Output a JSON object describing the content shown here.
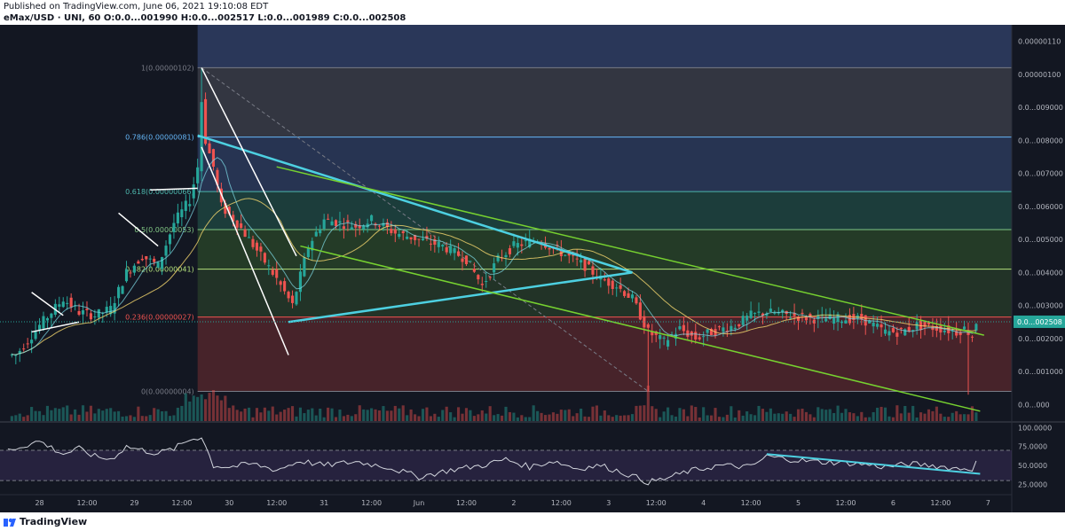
{
  "header": {
    "published": "Published on TradingView.com, June 06, 2021 19:10:08 EDT",
    "symbol_line": "eMax/USD · UNI, 60  O:0.0...001990  H:0.0...002517  L:0.0...001989  C:0.0...002508"
  },
  "footer": {
    "brand": "TradingView"
  },
  "colors": {
    "background": "#131722",
    "up": "#26a69a",
    "down": "#ef5350",
    "trend_cyan": "#4dd0e1",
    "channel_green": "#76d130",
    "rsi": "#d1d4dc"
  },
  "chart_data": [
    {
      "type": "candlestick",
      "price_axis_labels": [
        "0.00000110",
        "0.00000100",
        "0.0...009000",
        "0.0...008000",
        "0.0...007000",
        "0.0...006000",
        "0.0...005000",
        "0.0...004000",
        "0.0...003000",
        "0.0...002000",
        "0.0...001000",
        "0.0...000"
      ],
      "price_axis_values": [
        1.1,
        1.0,
        0.9,
        0.8,
        0.7,
        0.6,
        0.5,
        0.4,
        0.3,
        0.2,
        0.1,
        0.0
      ],
      "ylim": [
        -0.05,
        1.15
      ],
      "current_price_label": "0.0...002508",
      "current_price": 0.2508,
      "x_tick_labels": [
        "28",
        "12:00",
        "29",
        "12:00",
        "30",
        "12:00",
        "31",
        "12:00",
        "Jun",
        "12:00",
        "2",
        "12:00",
        "3",
        "12:00",
        "4",
        "12:00",
        "5",
        "12:00",
        "6",
        "12:00",
        "7"
      ],
      "x_tick_hours": [
        0,
        12,
        24,
        36,
        48,
        60,
        72,
        84,
        96,
        108,
        120,
        132,
        144,
        156,
        168,
        180,
        192,
        204,
        216,
        228,
        240
      ],
      "fib_levels": [
        {
          "label": "1(0.00000102)",
          "level": 1.02,
          "color": "#787b86"
        },
        {
          "label": "0.786(0.00000081)",
          "level": 0.81,
          "color": "#64b5f6"
        },
        {
          "label": "0.618(0.00000066)",
          "level": 0.645,
          "color": "#4db6ac"
        },
        {
          "label": "0.5(0.00000053)",
          "level": 0.53,
          "color": "#81c784"
        },
        {
          "label": "0.382(0.00000041)",
          "level": 0.41,
          "color": "#b2e07a"
        },
        {
          "label": "0.236(0.00000027)",
          "level": 0.265,
          "color": "#ef5350"
        },
        {
          "label": "0(0.00000004)",
          "level": 0.04,
          "color": "#787b86"
        }
      ],
      "fib_zone_top": 1.15,
      "fib_start_hour": 40,
      "price_path": [
        [
          -6,
          0.15
        ],
        [
          0,
          0.24
        ],
        [
          6,
          0.32
        ],
        [
          10,
          0.28
        ],
        [
          14,
          0.27
        ],
        [
          18,
          0.29
        ],
        [
          22,
          0.4
        ],
        [
          26,
          0.45
        ],
        [
          30,
          0.42
        ],
        [
          34,
          0.55
        ],
        [
          38,
          0.62
        ],
        [
          40,
          0.72
        ],
        [
          41,
          0.92
        ],
        [
          42,
          0.8
        ],
        [
          44,
          0.72
        ],
        [
          46,
          0.6
        ],
        [
          50,
          0.55
        ],
        [
          56,
          0.45
        ],
        [
          60,
          0.38
        ],
        [
          64,
          0.3
        ],
        [
          68,
          0.48
        ],
        [
          72,
          0.56
        ],
        [
          80,
          0.54
        ],
        [
          84,
          0.56
        ],
        [
          90,
          0.52
        ],
        [
          96,
          0.5
        ],
        [
          102,
          0.48
        ],
        [
          108,
          0.44
        ],
        [
          112,
          0.36
        ],
        [
          116,
          0.44
        ],
        [
          120,
          0.48
        ],
        [
          126,
          0.5
        ],
        [
          132,
          0.46
        ],
        [
          138,
          0.42
        ],
        [
          142,
          0.38
        ],
        [
          146,
          0.36
        ],
        [
          150,
          0.32
        ],
        [
          154,
          0.22
        ],
        [
          158,
          0.19
        ],
        [
          162,
          0.23
        ],
        [
          166,
          0.2
        ],
        [
          170,
          0.22
        ],
        [
          176,
          0.24
        ],
        [
          180,
          0.27
        ],
        [
          184,
          0.28
        ],
        [
          190,
          0.27
        ],
        [
          196,
          0.26
        ],
        [
          202,
          0.26
        ],
        [
          208,
          0.26
        ],
        [
          214,
          0.22
        ],
        [
          218,
          0.22
        ],
        [
          222,
          0.24
        ],
        [
          228,
          0.23
        ],
        [
          232,
          0.22
        ],
        [
          234,
          0.23
        ],
        [
          236,
          0.21
        ],
        [
          237,
          0.2508
        ]
      ],
      "trendlines": [
        {
          "name": "descending-cyan",
          "color": "#4dd0e1",
          "points": [
            [
              40,
              0.815
            ],
            [
              150,
              0.4
            ]
          ]
        },
        {
          "name": "ascending-cyan",
          "color": "#4dd0e1",
          "points": [
            [
              63,
              0.25
            ],
            [
              150,
              0.4
            ]
          ]
        },
        {
          "name": "channel-top-green",
          "color": "#76d130",
          "points": [
            [
              60,
              0.72
            ],
            [
              239,
              0.21
            ]
          ]
        },
        {
          "name": "channel-bottom-green",
          "color": "#76d130",
          "points": [
            [
              66,
              0.48
            ],
            [
              238,
              -0.02
            ]
          ]
        },
        {
          "name": "white-drop-1",
          "color": "#ffffff",
          "points": [
            [
              41,
              1.02
            ],
            [
              65,
              0.45
            ]
          ]
        },
        {
          "name": "white-drop-2",
          "color": "#ffffff",
          "points": [
            [
              41,
              0.78
            ],
            [
              63,
              0.15
            ]
          ]
        }
      ]
    },
    {
      "type": "line",
      "name": "RSI",
      "y_tick_labels": [
        "100.0000",
        "75.0000",
        "50.0000",
        "25.0000"
      ],
      "y_tick_values": [
        100,
        75,
        50,
        25
      ],
      "band": [
        30,
        70
      ],
      "ylim": [
        15,
        105
      ],
      "x": [
        -8,
        0,
        6,
        10,
        14,
        18,
        22,
        26,
        30,
        34,
        38,
        41,
        44,
        48,
        54,
        60,
        66,
        72,
        80,
        88,
        96,
        104,
        112,
        118,
        124,
        130,
        136,
        142,
        148,
        154,
        158,
        164,
        172,
        180,
        184,
        190,
        196,
        202,
        208,
        214,
        220,
        226,
        232,
        236,
        237
      ],
      "values": [
        70,
        82,
        65,
        72,
        62,
        58,
        75,
        70,
        66,
        72,
        84,
        88,
        50,
        48,
        52,
        44,
        56,
        50,
        55,
        48,
        35,
        44,
        50,
        58,
        48,
        56,
        46,
        50,
        40,
        28,
        32,
        42,
        50,
        48,
        62,
        58,
        55,
        54,
        52,
        48,
        52,
        50,
        46,
        46,
        56
      ],
      "annotation": {
        "color": "#4dd0e1",
        "points": [
          [
            184,
            65
          ],
          [
            238,
            39
          ]
        ]
      }
    }
  ]
}
